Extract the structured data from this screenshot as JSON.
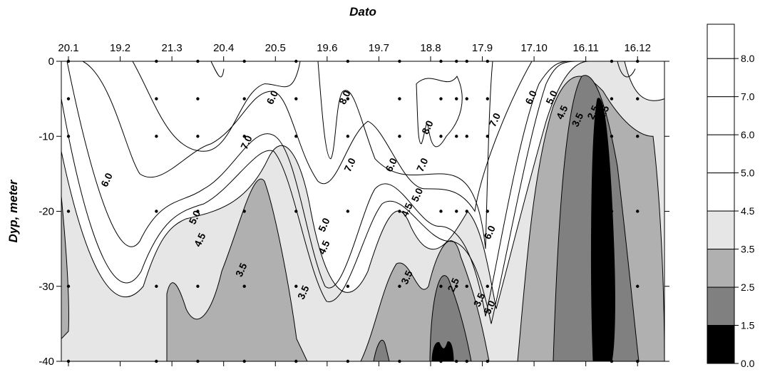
{
  "chart_data": {
    "type": "contour",
    "title": "",
    "xlabel": "Dato",
    "ylabel": "Dyp, meter",
    "x_dates": [
      "20.1",
      "19.2",
      "21.3",
      "20.4",
      "20.5",
      "19.6",
      "19.7",
      "18.8",
      "17.9",
      "17.10",
      "16.11",
      "16.12"
    ],
    "y_ticks": [
      "0",
      "-10",
      "-20",
      "-30",
      "-40"
    ],
    "ylim": [
      -40,
      0
    ],
    "depth_levels": [
      0,
      -5,
      -10,
      -20,
      -30,
      -40
    ],
    "sample_dates_index": [
      0,
      1.7,
      2.5,
      3.4,
      4.4,
      5.4,
      6.4,
      7.2,
      7.5,
      7.7,
      8.1,
      10.5,
      11.0,
      11.8
    ],
    "contour_levels": [
      1.5,
      2.5,
      3.5,
      4.5,
      5.0,
      6.0,
      7.0,
      8.0
    ],
    "contour_labels": [
      {
        "value": "8.0",
        "x_index": 5.4,
        "depth": -5
      },
      {
        "value": "8.0",
        "x_index": 7.0,
        "depth": -9
      },
      {
        "value": "7.0",
        "x_index": 8.3,
        "depth": -8
      },
      {
        "value": "7.0",
        "x_index": 3.5,
        "depth": -11
      },
      {
        "value": "7.0",
        "x_index": 5.5,
        "depth": -14
      },
      {
        "value": "7.0",
        "x_index": 6.9,
        "depth": -14
      },
      {
        "value": "6.0",
        "x_index": 4.0,
        "depth": -5
      },
      {
        "value": "6.0",
        "x_index": 0.8,
        "depth": -16
      },
      {
        "value": "6.0",
        "x_index": 6.3,
        "depth": -14
      },
      {
        "value": "6.0",
        "x_index": 9.0,
        "depth": -5
      },
      {
        "value": "6.0",
        "x_index": 8.2,
        "depth": -23
      },
      {
        "value": "5.0",
        "x_index": 9.4,
        "depth": -5
      },
      {
        "value": "5.0",
        "x_index": 2.5,
        "depth": -21
      },
      {
        "value": "5.0",
        "x_index": 5.0,
        "depth": -22
      },
      {
        "value": "5.0",
        "x_index": 6.8,
        "depth": -18
      },
      {
        "value": "5.0",
        "x_index": 8.2,
        "depth": -33
      },
      {
        "value": "4.5",
        "x_index": 9.6,
        "depth": -7
      },
      {
        "value": "4.5",
        "x_index": 2.6,
        "depth": -24
      },
      {
        "value": "4.5",
        "x_index": 5.0,
        "depth": -25
      },
      {
        "value": "4.5",
        "x_index": 6.6,
        "depth": -20
      },
      {
        "value": "3.5",
        "x_index": 9.9,
        "depth": -8
      },
      {
        "value": "3.5",
        "x_index": 3.4,
        "depth": -28
      },
      {
        "value": "3.5",
        "x_index": 4.6,
        "depth": -31
      },
      {
        "value": "3.5",
        "x_index": 6.6,
        "depth": -29
      },
      {
        "value": "3.5",
        "x_index": 8.0,
        "depth": -32
      },
      {
        "value": "2.5",
        "x_index": 10.2,
        "depth": -7
      },
      {
        "value": "2.5",
        "x_index": 7.5,
        "depth": -30
      },
      {
        "value": "1.5",
        "x_index": 10.4,
        "depth": -7
      }
    ],
    "legend": {
      "position": "right",
      "levels": [
        "0.0",
        "1.5",
        "2.5",
        "3.5",
        "4.5",
        "5.0",
        "6.0",
        "7.0",
        "8.0"
      ],
      "colors": [
        "#000000",
        "#808080",
        "#b0b0b0",
        "#e6e6e6",
        "#ffffff",
        "#ffffff",
        "#ffffff",
        "#ffffff",
        "#ffffff"
      ]
    },
    "fill_colors": {
      "above_3_5": "#ffffff",
      "band_3_5_to_4_5": "#e6e6e6",
      "band_2_5_to_3_5": "#b0b0b0",
      "band_1_5_to_2_5": "#808080",
      "below_1_5": "#000000"
    }
  }
}
